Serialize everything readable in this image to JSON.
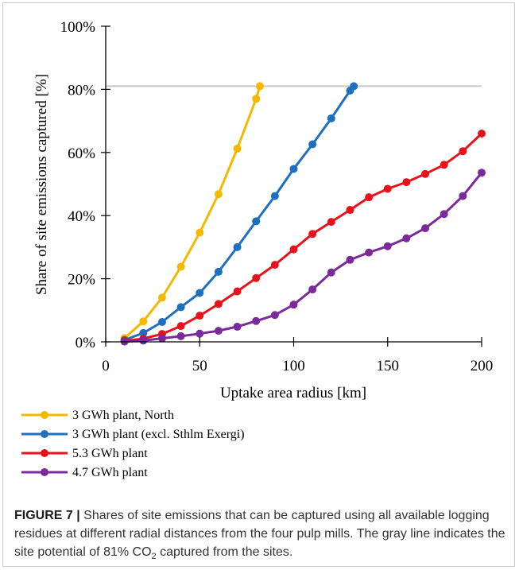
{
  "chart_data": {
    "type": "line",
    "xlabel": "Uptake area radius [km]",
    "ylabel": "Share of site emissions captured [%]",
    "xlim": [
      0,
      200
    ],
    "ylim": [
      0,
      100
    ],
    "x_ticks": [
      "0",
      "50",
      "100",
      "150",
      "200"
    ],
    "y_ticks": [
      "0%",
      "20%",
      "40%",
      "60%",
      "80%",
      "100%"
    ],
    "grid": false,
    "legend_position": "bottom-left",
    "reference_line": {
      "y": 81,
      "color": "#c8c8c8"
    },
    "series": [
      {
        "name": "3 GWh plant, North",
        "color": "#f5b800",
        "x": [
          10,
          20,
          30,
          40,
          50,
          60,
          70,
          80,
          82
        ],
        "y": [
          1.2,
          6.5,
          14,
          23.8,
          34.6,
          46.8,
          61.2,
          77,
          81
        ]
      },
      {
        "name": "3 GWh plant (excl. Sthlm Exergi)",
        "color": "#1f6fbf",
        "x": [
          10,
          20,
          30,
          40,
          50,
          60,
          70,
          80,
          90,
          100,
          110,
          120,
          130,
          132
        ],
        "y": [
          0.6,
          2.8,
          6.3,
          11,
          15.5,
          22.2,
          30,
          38.2,
          46.2,
          54.8,
          62.6,
          70.8,
          79.6,
          81
        ]
      },
      {
        "name": "5.3 GWh plant",
        "color": "#e8121b",
        "x": [
          10,
          20,
          30,
          40,
          50,
          60,
          70,
          80,
          90,
          100,
          110,
          120,
          130,
          140,
          150,
          160,
          170,
          180,
          190,
          200
        ],
        "y": [
          0.3,
          1,
          2.5,
          5,
          8.3,
          12,
          16,
          20.2,
          24.4,
          29.3,
          34.2,
          38,
          41.8,
          45.8,
          48.5,
          50.6,
          53.2,
          56.1,
          60.4,
          66
        ]
      },
      {
        "name": "4.7 GWh plant",
        "color": "#7b2a9c",
        "x": [
          10,
          20,
          30,
          40,
          50,
          60,
          70,
          80,
          90,
          100,
          110,
          120,
          130,
          140,
          150,
          160,
          170,
          180,
          190,
          200
        ],
        "y": [
          0.1,
          0.4,
          1.1,
          1.8,
          2.6,
          3.5,
          4.8,
          6.6,
          8.5,
          11.8,
          16.6,
          22,
          26,
          28.3,
          30.3,
          32.8,
          36,
          40.5,
          46.2,
          53.6
        ]
      }
    ]
  },
  "caption": {
    "label": "FIGURE 7 |",
    "text_before_sub": " Shares of site emissions that can be captured using all available logging residues at different radial distances from the four pulp mills. The gray line indicates the site potential of 81% CO",
    "sub": "2",
    "text_after_sub": " captured from the sites."
  }
}
